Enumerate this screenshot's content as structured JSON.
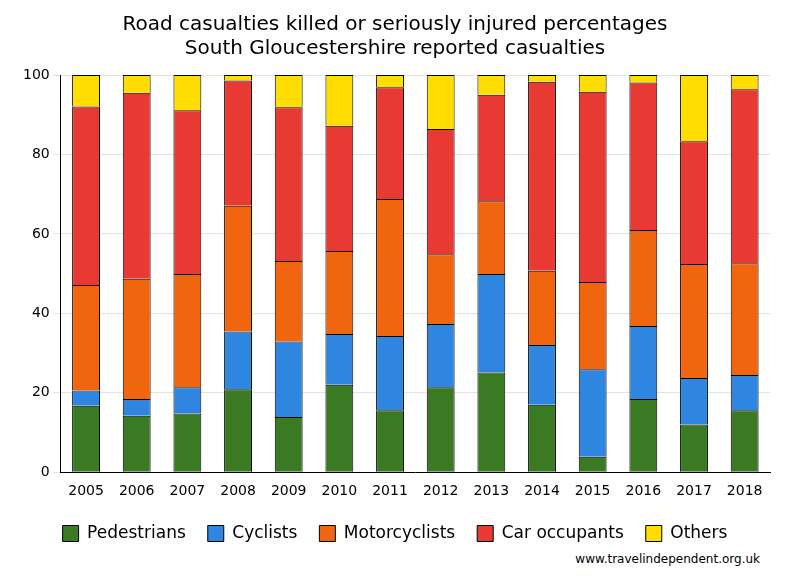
{
  "chart_data": {
    "type": "bar",
    "title": "Road casualties killed or seriously injured percentages",
    "subtitle": "South Gloucestershire reported casualties",
    "source": "www.travelindependent.org.uk",
    "categories": [
      "2005",
      "2006",
      "2007",
      "2008",
      "2009",
      "2010",
      "2011",
      "2012",
      "2013",
      "2014",
      "2015",
      "2016",
      "2017",
      "2018"
    ],
    "series": [
      {
        "name": "Pedestrians",
        "color": "#3a7a23",
        "values": [
          16.7,
          14.2,
          14.8,
          20.9,
          13.9,
          22.0,
          15.6,
          21.4,
          25.1,
          17.0,
          3.9,
          18.4,
          12.0,
          15.6
        ]
      },
      {
        "name": "Cyclists",
        "color": "#2f86e0",
        "values": [
          3.9,
          4.2,
          6.6,
          14.5,
          19.0,
          12.8,
          18.7,
          15.9,
          24.8,
          15.0,
          22.0,
          18.4,
          11.7,
          8.9
        ]
      },
      {
        "name": "Motorcyclists",
        "color": "#f0650e",
        "values": [
          26.5,
          30.3,
          28.5,
          31.7,
          20.3,
          20.9,
          34.5,
          17.6,
          18.3,
          18.7,
          22.0,
          24.2,
          28.7,
          28.1
        ]
      },
      {
        "name": "Car occupants",
        "color": "#e83a32",
        "values": [
          45.0,
          46.8,
          41.2,
          31.5,
          38.7,
          31.5,
          28.1,
          31.5,
          26.8,
          47.6,
          47.9,
          37.1,
          30.9,
          43.8
        ]
      },
      {
        "name": "Others",
        "color": "#ffdd00",
        "values": [
          7.9,
          4.5,
          8.9,
          1.4,
          8.1,
          12.8,
          3.1,
          13.6,
          5.0,
          1.7,
          4.2,
          1.9,
          16.7,
          3.6
        ]
      }
    ],
    "stacked": true,
    "ylim": [
      0,
      100
    ],
    "yticks": [
      0,
      20,
      40,
      60,
      80,
      100
    ],
    "grid": true,
    "legend": "bottom"
  }
}
